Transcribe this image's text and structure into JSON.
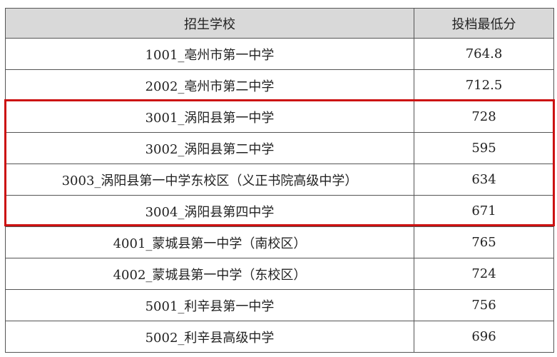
{
  "table": {
    "headers": [
      "招生学校",
      "投档最低分"
    ],
    "rows": [
      {
        "school": "1001_亳州市第一中学",
        "score": "764.8"
      },
      {
        "school": "2002_亳州市第二中学",
        "score": "712.5"
      },
      {
        "school": "3001_涡阳县第一中学",
        "score": "728"
      },
      {
        "school": "3002_涡阳县第二中学",
        "score": "595"
      },
      {
        "school": "3003_涡阳县第一中学东校区（义正书院高级中学）",
        "score": "634"
      },
      {
        "school": "3004_涡阳县第四中学",
        "score": "671"
      },
      {
        "school": "4001_蒙城县第一中学（南校区）",
        "score": "765"
      },
      {
        "school": "4002_蒙城县第一中学（东校区）",
        "score": "724"
      },
      {
        "school": "5001_利辛县第一中学",
        "score": "756"
      },
      {
        "school": "5002_利辛县高级中学",
        "score": "696"
      }
    ]
  },
  "highlight": {
    "color": "#cc1111",
    "rows": [
      "3001",
      "3002",
      "3003",
      "3004"
    ]
  }
}
